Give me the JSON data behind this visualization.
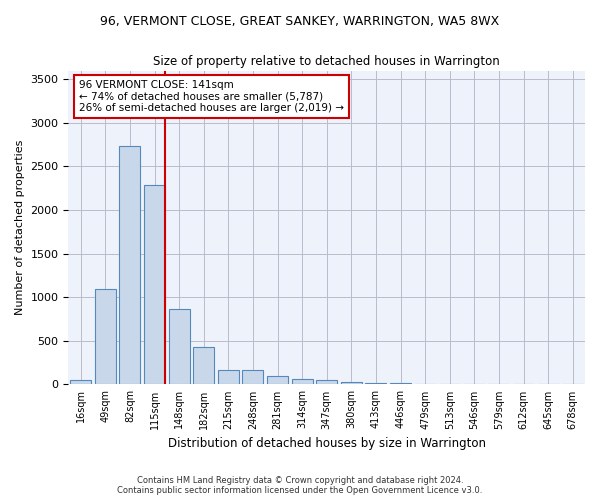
{
  "title_line1": "96, VERMONT CLOSE, GREAT SANKEY, WARRINGTON, WA5 8WX",
  "title_line2": "Size of property relative to detached houses in Warrington",
  "xlabel": "Distribution of detached houses by size in Warrington",
  "ylabel": "Number of detached properties",
  "bar_color": "#c8d8ea",
  "bar_edge_color": "#5588bb",
  "categories": [
    "16sqm",
    "49sqm",
    "82sqm",
    "115sqm",
    "148sqm",
    "182sqm",
    "215sqm",
    "248sqm",
    "281sqm",
    "314sqm",
    "347sqm",
    "380sqm",
    "413sqm",
    "446sqm",
    "479sqm",
    "513sqm",
    "546sqm",
    "579sqm",
    "612sqm",
    "645sqm",
    "678sqm"
  ],
  "values": [
    55,
    1100,
    2730,
    2290,
    870,
    425,
    170,
    160,
    95,
    65,
    55,
    30,
    20,
    20,
    5,
    0,
    0,
    0,
    0,
    0,
    0
  ],
  "ylim": [
    0,
    3600
  ],
  "yticks": [
    0,
    500,
    1000,
    1500,
    2000,
    2500,
    3000,
    3500
  ],
  "vline_index": 3.425,
  "vline_color": "#cc0000",
  "annotation_text": "96 VERMONT CLOSE: 141sqm\n← 74% of detached houses are smaller (5,787)\n26% of semi-detached houses are larger (2,019) →",
  "annotation_box_color": "#ffffff",
  "annotation_box_edge_color": "#cc0000",
  "footer_line1": "Contains HM Land Registry data © Crown copyright and database right 2024.",
  "footer_line2": "Contains public sector information licensed under the Open Government Licence v3.0.",
  "background_color": "#eef2fb",
  "grid_color": "#bbbbcc"
}
